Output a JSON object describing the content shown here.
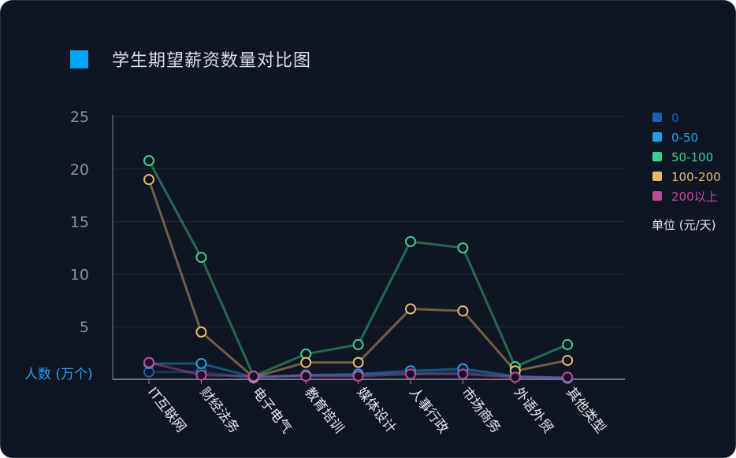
{
  "title": "学生期望薪资数量对比图",
  "colors": {
    "title_marker": "#00a6f5"
  },
  "chart_data": {
    "type": "line",
    "title": "学生期望薪资数量对比图",
    "ylabel": "人数 (万个)",
    "unit_label": "单位 (元/天)",
    "ylim": [
      0,
      25
    ],
    "yticks": [
      5,
      10,
      15,
      20,
      25
    ],
    "grid": true,
    "legend_position": "right",
    "categories": [
      "IT互联网",
      "财经法务",
      "电子电气",
      "教育培训",
      "媒体设计",
      "人事行政",
      "市场商务",
      "外语外贸",
      "其他类型"
    ],
    "series": [
      {
        "name": "0",
        "color": "#1b5fae",
        "values": [
          0.7,
          0.7,
          0.1,
          0.4,
          0.4,
          0.6,
          0.7,
          0.2,
          0.1
        ]
      },
      {
        "name": "0-50",
        "color": "#1f9fe8",
        "values": [
          1.5,
          1.5,
          0.2,
          0.4,
          0.5,
          0.8,
          1.0,
          0.3,
          0.1
        ]
      },
      {
        "name": "50-100",
        "color": "#3ad08f",
        "values": [
          20.8,
          11.6,
          0.3,
          2.4,
          3.3,
          13.1,
          12.5,
          1.2,
          3.3
        ]
      },
      {
        "name": "100-200",
        "color": "#e8b86a",
        "values": [
          19.0,
          4.5,
          0.2,
          1.6,
          1.6,
          6.7,
          6.5,
          0.8,
          1.8
        ]
      },
      {
        "name": "200以上",
        "color": "#c0499a",
        "values": [
          1.6,
          0.4,
          0.3,
          0.3,
          0.3,
          0.5,
          0.5,
          0.2,
          0.2
        ]
      }
    ]
  }
}
